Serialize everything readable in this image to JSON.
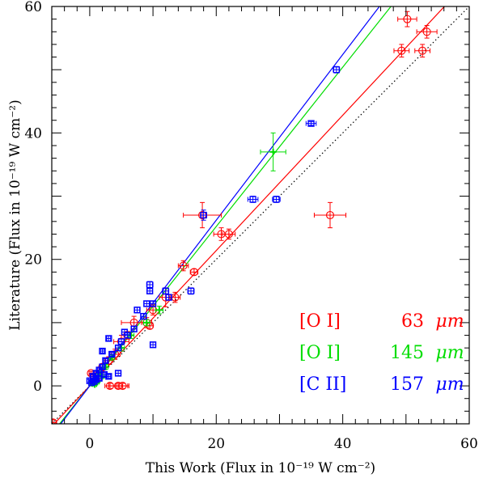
{
  "chart_data": {
    "type": "scatter",
    "title": "",
    "xlabel": "This Work  (Flux in 10⁻¹⁹ W cm⁻²)",
    "ylabel": "Literature  (Flux in 10⁻¹⁹ W cm⁻²)",
    "xlim": [
      -6,
      60
    ],
    "ylim": [
      -6,
      60
    ],
    "x_ticks": [
      0,
      20,
      40,
      60
    ],
    "y_ticks": [
      0,
      20,
      40,
      60
    ],
    "x_tick_labels": [
      "0",
      "20",
      "40",
      "60"
    ],
    "y_tick_labels": [
      "0",
      "20",
      "40",
      "60"
    ],
    "grid": false,
    "legend_position": "bottom-right",
    "reference_line": {
      "style": "dotted",
      "color": "#000000",
      "slope": 1,
      "intercept": 0
    },
    "series": [
      {
        "name": "[O I]  63 μm",
        "label": "[O I]",
        "wavelength": "63",
        "unit": "μm",
        "color": "#ff0000",
        "marker": "circle",
        "fit": {
          "slope": 1.07,
          "intercept": 0
        },
        "points": [
          {
            "x": 50.2,
            "y": 58,
            "xerr": 1.5,
            "yerr": 1.2
          },
          {
            "x": 53.3,
            "y": 56,
            "xerr": 1.6,
            "yerr": 1.0
          },
          {
            "x": 49.3,
            "y": 53,
            "xerr": 1.2,
            "yerr": 1.0
          },
          {
            "x": 52.6,
            "y": 53,
            "xerr": 1.2,
            "yerr": 1.0
          },
          {
            "x": 38.0,
            "y": 27,
            "xerr": 2.5,
            "yerr": 2.0
          },
          {
            "x": 17.8,
            "y": 27,
            "xerr": 3.0,
            "yerr": 2.0
          },
          {
            "x": 20.8,
            "y": 24,
            "xerr": 1.2,
            "yerr": 1.0
          },
          {
            "x": 22.0,
            "y": 24,
            "xerr": 1.0,
            "yerr": 0.8
          },
          {
            "x": 14.8,
            "y": 19,
            "xerr": 0.8,
            "yerr": 0.8
          },
          {
            "x": 16.5,
            "y": 18,
            "xerr": 0.6,
            "yerr": 0.5
          },
          {
            "x": 12.0,
            "y": 14,
            "xerr": 1.0,
            "yerr": 1.5
          },
          {
            "x": 13.5,
            "y": 14,
            "xerr": 0.8,
            "yerr": 0.8
          },
          {
            "x": 10.0,
            "y": 12,
            "xerr": 1.0,
            "yerr": 0.8
          },
          {
            "x": 7.0,
            "y": 10,
            "xerr": 2.0,
            "yerr": 1.0
          },
          {
            "x": 9.0,
            "y": 10,
            "xerr": 0.8,
            "yerr": 0.8
          },
          {
            "x": 9.5,
            "y": 9.5,
            "xerr": 0.5,
            "yerr": 0.5
          },
          {
            "x": 6.0,
            "y": 8,
            "xerr": 0.6,
            "yerr": 0.6
          },
          {
            "x": 5.0,
            "y": 7,
            "xerr": 1.2,
            "yerr": 1.0
          },
          {
            "x": 4.0,
            "y": 5,
            "xerr": 0.8,
            "yerr": 0.8
          },
          {
            "x": 3.0,
            "y": 4,
            "xerr": 0.6,
            "yerr": 0.6
          },
          {
            "x": 2.0,
            "y": 3,
            "xerr": 0.5,
            "yerr": 0.5
          },
          {
            "x": 1.5,
            "y": 2,
            "xerr": 0.5,
            "yerr": 0.5
          },
          {
            "x": 0.2,
            "y": 2,
            "xerr": 0.3,
            "yerr": 0.3
          },
          {
            "x": 1.0,
            "y": 1,
            "xerr": 0.4,
            "yerr": 0.4
          },
          {
            "x": 3.2,
            "y": 0,
            "xerr": 0.8,
            "yerr": 0.4
          },
          {
            "x": 4.5,
            "y": 0,
            "xerr": 1.5,
            "yerr": 0.4
          },
          {
            "x": 5.2,
            "y": 0,
            "xerr": 1.0,
            "yerr": 0.4
          },
          {
            "x": -5.8,
            "y": -5.8,
            "xerr": 0.5,
            "yerr": 0.5
          }
        ]
      },
      {
        "name": "[O I]  145 μm",
        "label": "[O I]",
        "wavelength": "145",
        "unit": "μm",
        "color": "#00dd00",
        "marker": "cross",
        "fit": {
          "slope": 1.26,
          "intercept": 0
        },
        "points": [
          {
            "x": 29.0,
            "y": 37,
            "xerr": 2.0,
            "yerr": 3.0
          },
          {
            "x": 11.0,
            "y": 12,
            "xerr": 0.6,
            "yerr": 0.6
          },
          {
            "x": 9.0,
            "y": 10,
            "xerr": 0.5,
            "yerr": 0.5
          },
          {
            "x": 6.5,
            "y": 8,
            "xerr": 0.5,
            "yerr": 0.5
          },
          {
            "x": 5.0,
            "y": 6,
            "xerr": 0.5,
            "yerr": 0.5
          },
          {
            "x": 3.5,
            "y": 4.5,
            "xerr": 0.4,
            "yerr": 0.4
          },
          {
            "x": 2.5,
            "y": 3,
            "xerr": 0.4,
            "yerr": 0.4
          },
          {
            "x": 1.5,
            "y": 2,
            "xerr": 0.3,
            "yerr": 0.3
          },
          {
            "x": 1.0,
            "y": 1.2,
            "xerr": 0.3,
            "yerr": 0.3
          },
          {
            "x": 0.5,
            "y": 0.8,
            "xerr": 0.2,
            "yerr": 0.2
          },
          {
            "x": 0.3,
            "y": 0.4,
            "xerr": 0.2,
            "yerr": 0.2
          },
          {
            "x": 0.8,
            "y": 0.2,
            "xerr": 0.3,
            "yerr": 0.2
          },
          {
            "x": 1.2,
            "y": 0.6,
            "xerr": 0.3,
            "yerr": 0.2
          },
          {
            "x": 2.0,
            "y": 1.5,
            "xerr": 0.3,
            "yerr": 0.3
          }
        ]
      },
      {
        "name": "[C II]  157 μm",
        "label": "[C II]",
        "wavelength": "157",
        "unit": "μm",
        "color": "#0000ff",
        "marker": "square",
        "fit": {
          "slope": 1.31,
          "intercept": 0
        },
        "points": [
          {
            "x": 39.0,
            "y": 50,
            "xerr": 0.5,
            "yerr": 0.5
          },
          {
            "x": 35.0,
            "y": 41.5,
            "xerr": 0.8,
            "yerr": 0.3
          },
          {
            "x": 29.5,
            "y": 29.5,
            "xerr": 0.6,
            "yerr": 0.5
          },
          {
            "x": 25.8,
            "y": 29.5,
            "xerr": 0.8,
            "yerr": 0.5
          },
          {
            "x": 18.0,
            "y": 27,
            "xerr": 0.5,
            "yerr": 0.8
          },
          {
            "x": 16.0,
            "y": 15,
            "xerr": 0.5,
            "yerr": 0.5
          },
          {
            "x": 12.0,
            "y": 15,
            "xerr": 0.5,
            "yerr": 0.5
          },
          {
            "x": 12.5,
            "y": 14,
            "xerr": 0.4,
            "yerr": 0.4
          },
          {
            "x": 9.5,
            "y": 16,
            "xerr": 0.5,
            "yerr": 0.5
          },
          {
            "x": 9.5,
            "y": 15,
            "xerr": 0.4,
            "yerr": 0.4
          },
          {
            "x": 10.0,
            "y": 13,
            "xerr": 0.4,
            "yerr": 0.4
          },
          {
            "x": 9.0,
            "y": 13,
            "xerr": 0.4,
            "yerr": 0.4
          },
          {
            "x": 8.5,
            "y": 11,
            "xerr": 0.4,
            "yerr": 0.4
          },
          {
            "x": 7.5,
            "y": 12,
            "xerr": 0.4,
            "yerr": 0.4
          },
          {
            "x": 10.0,
            "y": 6.5,
            "xerr": 0.4,
            "yerr": 0.4
          },
          {
            "x": 7.0,
            "y": 9,
            "xerr": 0.4,
            "yerr": 0.4
          },
          {
            "x": 6.0,
            "y": 8,
            "xerr": 0.4,
            "yerr": 0.4
          },
          {
            "x": 5.5,
            "y": 8.5,
            "xerr": 0.4,
            "yerr": 0.4
          },
          {
            "x": 5.0,
            "y": 7,
            "xerr": 0.4,
            "yerr": 0.4
          },
          {
            "x": 4.5,
            "y": 6,
            "xerr": 0.4,
            "yerr": 0.4
          },
          {
            "x": 3.0,
            "y": 7.5,
            "xerr": 0.3,
            "yerr": 0.4
          },
          {
            "x": 3.5,
            "y": 5,
            "xerr": 0.3,
            "yerr": 0.3
          },
          {
            "x": 2.5,
            "y": 4,
            "xerr": 0.3,
            "yerr": 0.3
          },
          {
            "x": 2.0,
            "y": 5.5,
            "xerr": 0.3,
            "yerr": 0.3
          },
          {
            "x": 2.0,
            "y": 3,
            "xerr": 0.3,
            "yerr": 0.3
          },
          {
            "x": 1.5,
            "y": 2.5,
            "xerr": 0.3,
            "yerr": 0.3
          },
          {
            "x": 1.0,
            "y": 2,
            "xerr": 0.3,
            "yerr": 0.3
          },
          {
            "x": 1.0,
            "y": 1,
            "xerr": 0.3,
            "yerr": 0.3
          },
          {
            "x": 0.5,
            "y": 1.5,
            "xerr": 0.3,
            "yerr": 0.3
          },
          {
            "x": 0.3,
            "y": 0.5,
            "xerr": 0.2,
            "yerr": 0.2
          },
          {
            "x": 0.7,
            "y": 0.7,
            "xerr": 0.2,
            "yerr": 0.2
          },
          {
            "x": 1.5,
            "y": 1.2,
            "xerr": 0.3,
            "yerr": 0.3
          },
          {
            "x": 4.5,
            "y": 2,
            "xerr": 0.4,
            "yerr": 0.4
          },
          {
            "x": 3.0,
            "y": 1.5,
            "xerr": 0.3,
            "yerr": 0.3
          },
          {
            "x": 2.3,
            "y": 1.8,
            "xerr": 0.3,
            "yerr": 0.3
          },
          {
            "x": 0.0,
            "y": 0.8,
            "xerr": 0.2,
            "yerr": 0.2
          }
        ]
      }
    ]
  }
}
